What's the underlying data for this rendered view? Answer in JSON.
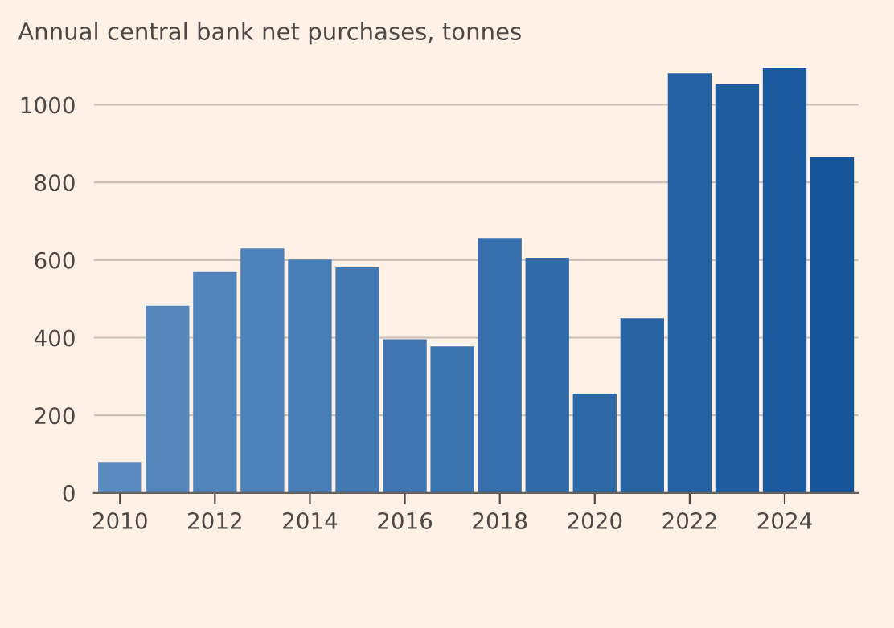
{
  "chart_data": {
    "type": "bar",
    "title": "Annual central bank net purchases, tonnes",
    "x": [
      2010,
      2011,
      2012,
      2013,
      2014,
      2015,
      2016,
      2017,
      2018,
      2019,
      2020,
      2021,
      2022,
      2023,
      2024,
      2025
    ],
    "values": [
      80,
      482,
      569,
      630,
      601,
      581,
      396,
      378,
      657,
      606,
      256,
      450,
      1081,
      1053,
      1094,
      865
    ],
    "colors": [
      "#5a8bc0",
      "#5587bd",
      "#5184bb",
      "#4d81b9",
      "#487db6",
      "#447ab4",
      "#3f76b1",
      "#3b73af",
      "#366fac",
      "#316baa",
      "#2d68a7",
      "#2864a4",
      "#2461a2",
      "#1f5d9f",
      "#1a599d",
      "#15569a"
    ],
    "xlim": [
      2009.45,
      2025.55
    ],
    "xticks": [
      2010,
      2012,
      2014,
      2016,
      2018,
      2020,
      2022,
      2024
    ],
    "ylim": [
      0,
      1100
    ],
    "yticks": [
      0,
      200,
      400,
      600,
      800,
      1000
    ],
    "grid": "y"
  }
}
